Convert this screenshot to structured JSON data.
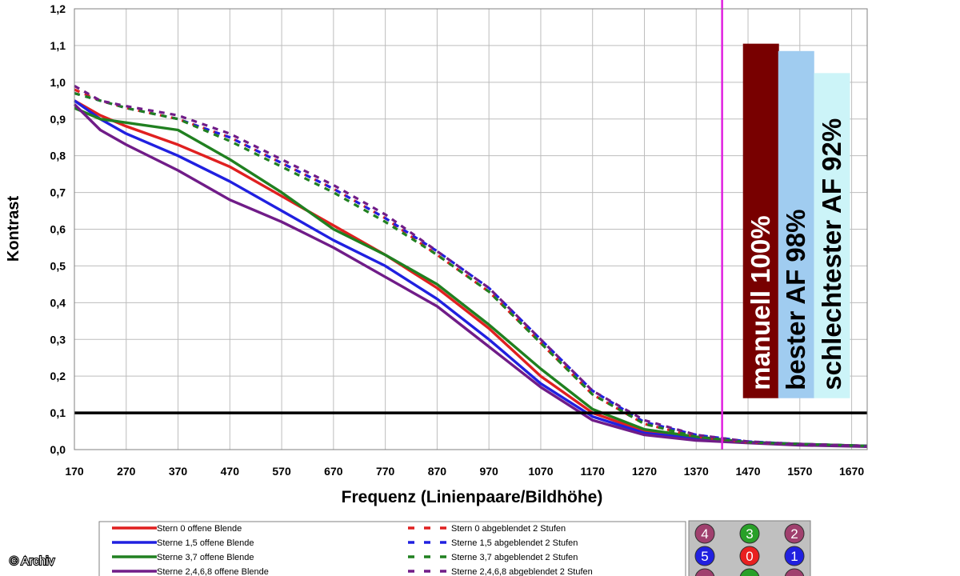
{
  "chart_data": {
    "type": "line",
    "title": "",
    "xlabel": "Frequenz (Linienpaare/Bildhöhe)",
    "ylabel": "Kontrast",
    "xlim": [
      170,
      1700
    ],
    "ylim": [
      0,
      1.2
    ],
    "x_ticks": [
      170,
      270,
      370,
      470,
      570,
      670,
      770,
      870,
      970,
      1070,
      1170,
      1270,
      1370,
      1470,
      1570,
      1670
    ],
    "y_ticks": [
      "0,0",
      "0,1",
      "0,2",
      "0,3",
      "0,4",
      "0,5",
      "0,6",
      "0,7",
      "0,8",
      "0,9",
      "1,0",
      "1,1",
      "1,2"
    ],
    "grid": true,
    "reference_line": {
      "y": 0.1,
      "color": "#000000"
    },
    "marker_line": {
      "x": 1420,
      "color": "#e020e0"
    },
    "series": [
      {
        "name": "Stern 0 offene Blende",
        "color": "#e02020",
        "dash": false,
        "x": [
          170,
          220,
          270,
          370,
          470,
          570,
          670,
          770,
          870,
          970,
          1070,
          1170,
          1270,
          1370,
          1470,
          1570,
          1700
        ],
        "y": [
          0.95,
          0.91,
          0.88,
          0.83,
          0.77,
          0.69,
          0.61,
          0.53,
          0.44,
          0.33,
          0.2,
          0.1,
          0.05,
          0.03,
          0.02,
          0.015,
          0.01
        ]
      },
      {
        "name": "Sterne 1,5 offene Blende",
        "color": "#2020e0",
        "dash": false,
        "x": [
          170,
          220,
          270,
          370,
          470,
          570,
          670,
          770,
          870,
          970,
          1070,
          1170,
          1270,
          1370,
          1470,
          1570,
          1700
        ],
        "y": [
          0.95,
          0.9,
          0.86,
          0.8,
          0.73,
          0.65,
          0.57,
          0.5,
          0.41,
          0.3,
          0.18,
          0.09,
          0.045,
          0.03,
          0.02,
          0.015,
          0.01
        ]
      },
      {
        "name": "Sterne 3,7 offene Blende",
        "color": "#208020",
        "dash": false,
        "x": [
          170,
          220,
          270,
          370,
          470,
          570,
          670,
          770,
          870,
          970,
          1070,
          1170,
          1270,
          1370,
          1470,
          1570,
          1700
        ],
        "y": [
          0.93,
          0.9,
          0.89,
          0.87,
          0.79,
          0.7,
          0.6,
          0.53,
          0.45,
          0.34,
          0.22,
          0.11,
          0.055,
          0.035,
          0.02,
          0.015,
          0.01
        ]
      },
      {
        "name": "Sterne 2,4,6,8 offene Blende",
        "color": "#701c88",
        "dash": false,
        "x": [
          170,
          220,
          270,
          370,
          470,
          570,
          670,
          770,
          870,
          970,
          1070,
          1170,
          1270,
          1370,
          1470,
          1570,
          1700
        ],
        "y": [
          0.94,
          0.87,
          0.83,
          0.76,
          0.68,
          0.62,
          0.55,
          0.47,
          0.39,
          0.28,
          0.17,
          0.08,
          0.04,
          0.025,
          0.018,
          0.012,
          0.008
        ]
      },
      {
        "name": "Stern 0 abgeblendet 2 Stufen",
        "color": "#e02020",
        "dash": true,
        "x": [
          170,
          220,
          270,
          370,
          470,
          570,
          670,
          770,
          870,
          970,
          1070,
          1170,
          1270,
          1370,
          1470,
          1570,
          1700
        ],
        "y": [
          0.98,
          0.95,
          0.93,
          0.9,
          0.85,
          0.78,
          0.71,
          0.63,
          0.53,
          0.43,
          0.29,
          0.15,
          0.07,
          0.035,
          0.02,
          0.015,
          0.01
        ]
      },
      {
        "name": "Sterne 1,5 abgeblendet 2 Stufen",
        "color": "#2020e0",
        "dash": true,
        "x": [
          170,
          220,
          270,
          370,
          470,
          570,
          670,
          770,
          870,
          970,
          1070,
          1170,
          1270,
          1370,
          1470,
          1570,
          1700
        ],
        "y": [
          0.97,
          0.95,
          0.93,
          0.9,
          0.85,
          0.78,
          0.71,
          0.63,
          0.54,
          0.44,
          0.3,
          0.16,
          0.075,
          0.04,
          0.022,
          0.015,
          0.01
        ]
      },
      {
        "name": "Sterne 3,7 abgeblendet 2 Stufen",
        "color": "#208020",
        "dash": true,
        "x": [
          170,
          220,
          270,
          370,
          470,
          570,
          670,
          770,
          870,
          970,
          1070,
          1170,
          1270,
          1370,
          1470,
          1570,
          1700
        ],
        "y": [
          0.97,
          0.95,
          0.93,
          0.9,
          0.84,
          0.77,
          0.7,
          0.62,
          0.53,
          0.43,
          0.29,
          0.15,
          0.07,
          0.035,
          0.02,
          0.015,
          0.01
        ]
      },
      {
        "name": "Sterne 2,4,6,8 abgeblendet 2 Stufen",
        "color": "#701c88",
        "dash": true,
        "x": [
          170,
          220,
          270,
          370,
          470,
          570,
          670,
          770,
          870,
          970,
          1070,
          1170,
          1270,
          1370,
          1470,
          1570,
          1700
        ],
        "y": [
          0.99,
          0.95,
          0.935,
          0.91,
          0.86,
          0.79,
          0.72,
          0.64,
          0.54,
          0.44,
          0.3,
          0.16,
          0.08,
          0.04,
          0.022,
          0.015,
          0.01
        ]
      }
    ],
    "bars": [
      {
        "label": "manuell 100%",
        "value": 1.105,
        "color": "#780000",
        "text_color": "#ffffff",
        "x_center": 1495
      },
      {
        "label": "bester AF 98%",
        "value": 1.085,
        "color": "#a0ccf0",
        "text_color": "#000000",
        "x_center": 1563
      },
      {
        "label": "schlechtester AF 92%",
        "value": 1.025,
        "color": "#ccf4f8",
        "text_color": "#000000",
        "x_center": 1632
      }
    ],
    "legend_placement": "bottom"
  },
  "star_map": {
    "rows": [
      [
        {
          "number": "4",
          "color": "#a0406e"
        },
        {
          "number": "3",
          "color": "#28a028"
        },
        {
          "number": "2",
          "color": "#a0406e"
        }
      ],
      [
        {
          "number": "5",
          "color": "#2020e0"
        },
        {
          "number": "0",
          "color": "#e82020"
        },
        {
          "number": "1",
          "color": "#2020e0"
        }
      ],
      [
        {
          "number": "",
          "color": "#a0406e"
        },
        {
          "number": "",
          "color": "#28a028"
        },
        {
          "number": "",
          "color": "#a0406e"
        }
      ]
    ]
  },
  "credit": "© Archiv"
}
